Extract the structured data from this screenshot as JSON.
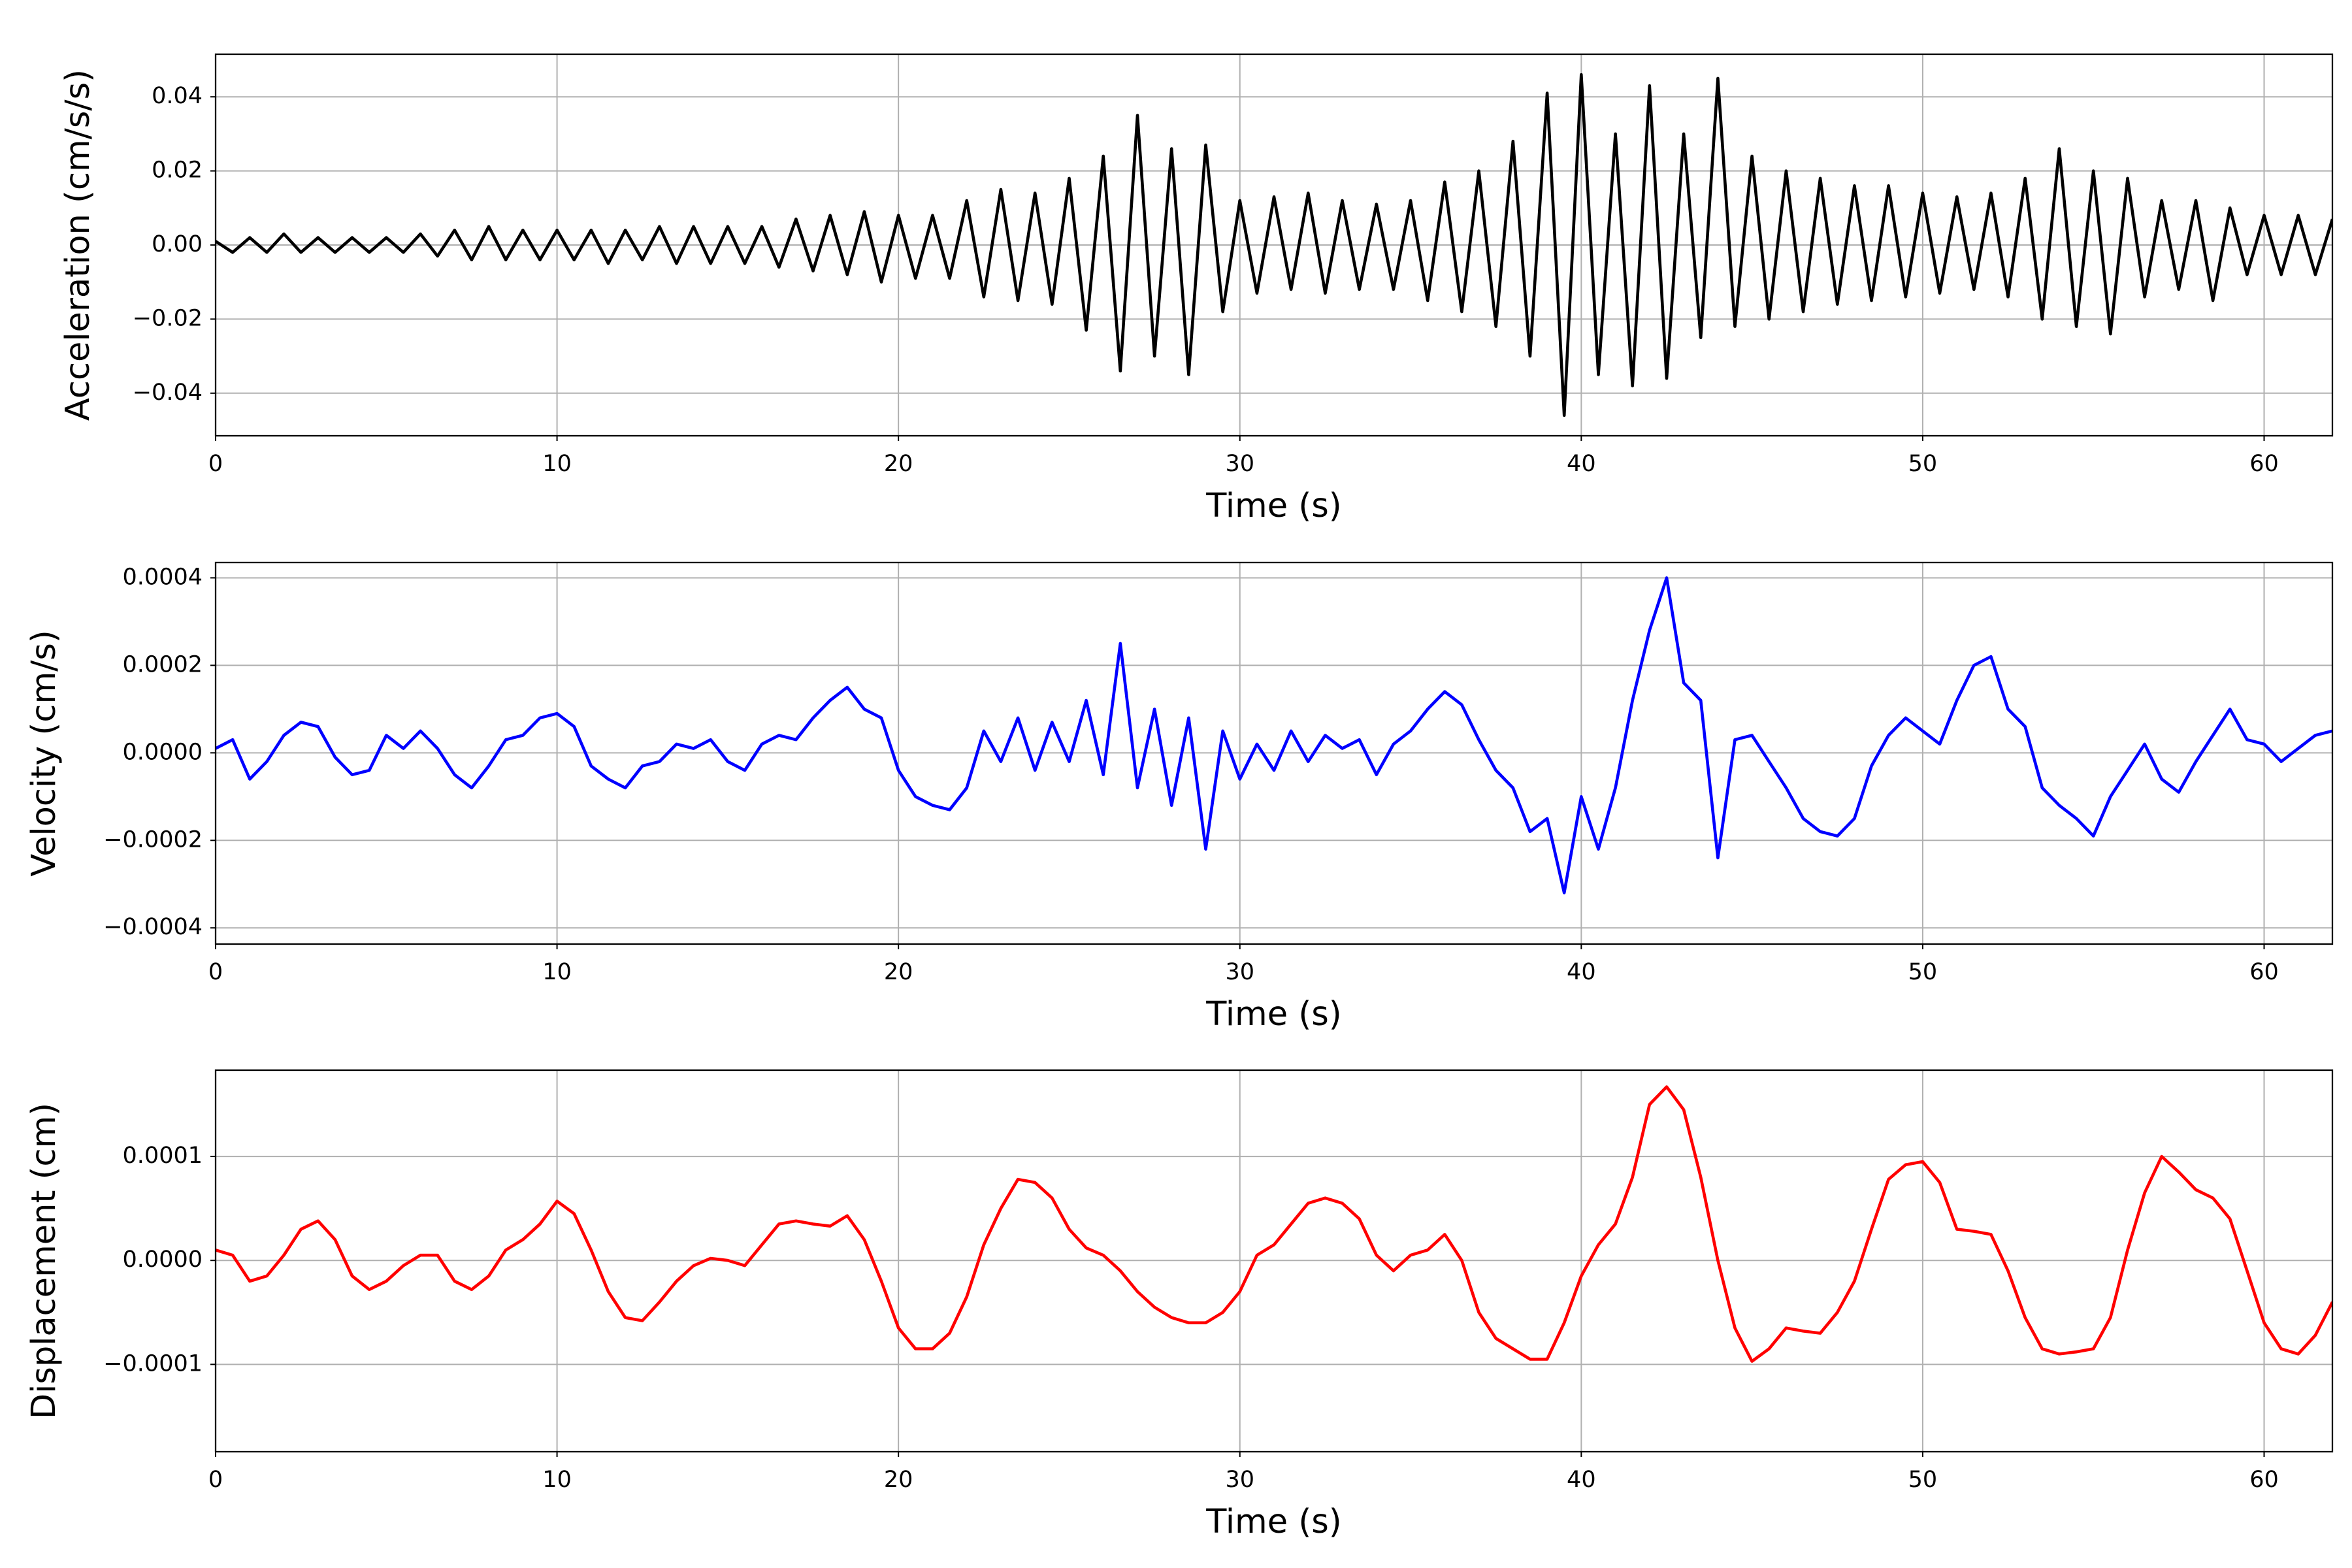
{
  "chart_data": [
    {
      "type": "line",
      "xlabel": "Time (s)",
      "ylabel": "Acceleration (cm/s/s)",
      "color": "#000000",
      "grid": true,
      "xlim": [
        0,
        62
      ],
      "xticks": [
        0,
        10,
        20,
        30,
        40,
        50,
        60
      ],
      "ylim": [
        -0.0515,
        0.0515
      ],
      "yticks": [
        {
          "value": -0.04,
          "label": "−0.04"
        },
        {
          "value": -0.02,
          "label": "−0.02"
        },
        {
          "value": 0,
          "label": "0.00"
        },
        {
          "value": 0.02,
          "label": "0.02"
        },
        {
          "value": 0.04,
          "label": "0.04"
        }
      ],
      "x": [
        0,
        0.5,
        1,
        1.5,
        2,
        2.5,
        3,
        3.5,
        4,
        4.5,
        5,
        5.5,
        6,
        6.5,
        7,
        7.5,
        8,
        8.5,
        9,
        9.5,
        10,
        10.5,
        11,
        11.5,
        12,
        12.5,
        13,
        13.5,
        14,
        14.5,
        15,
        15.5,
        16,
        16.5,
        17,
        17.5,
        18,
        18.5,
        19,
        19.5,
        20,
        20.5,
        21,
        21.5,
        22,
        22.5,
        23,
        23.5,
        24,
        24.5,
        25,
        25.5,
        26,
        26.5,
        27,
        27.5,
        28,
        28.5,
        29,
        29.5,
        30,
        30.5,
        31,
        31.5,
        32,
        32.5,
        33,
        33.5,
        34,
        34.5,
        35,
        35.5,
        36,
        36.5,
        37,
        37.5,
        38,
        38.5,
        39,
        39.5,
        40,
        40.5,
        41,
        41.5,
        42,
        42.5,
        43,
        43.5,
        44,
        44.5,
        45,
        45.5,
        46,
        46.5,
        47,
        47.5,
        48,
        48.5,
        49,
        49.5,
        50,
        50.5,
        51,
        51.5,
        52,
        52.5,
        53,
        53.5,
        54,
        54.5,
        55,
        55.5,
        56,
        56.5,
        57,
        57.5,
        58,
        58.5,
        59,
        59.5,
        60,
        60.5,
        61,
        61.5,
        62
      ],
      "values": [
        0.001,
        -0.002,
        0.002,
        -0.002,
        0.003,
        -0.002,
        0.002,
        -0.002,
        0.002,
        -0.002,
        0.002,
        -0.002,
        0.003,
        -0.003,
        0.004,
        -0.004,
        0.005,
        -0.004,
        0.004,
        -0.004,
        0.004,
        -0.004,
        0.004,
        -0.005,
        0.004,
        -0.004,
        0.005,
        -0.005,
        0.005,
        -0.005,
        0.005,
        -0.005,
        0.005,
        -0.006,
        0.007,
        -0.007,
        0.008,
        -0.008,
        0.009,
        -0.01,
        0.008,
        -0.009,
        0.008,
        -0.009,
        0.012,
        -0.014,
        0.015,
        -0.015,
        0.014,
        -0.016,
        0.018,
        -0.023,
        0.024,
        -0.034,
        0.035,
        -0.03,
        0.026,
        -0.035,
        0.027,
        -0.018,
        0.012,
        -0.013,
        0.013,
        -0.012,
        0.014,
        -0.013,
        0.012,
        -0.012,
        0.011,
        -0.012,
        0.012,
        -0.015,
        0.017,
        -0.018,
        0.02,
        -0.022,
        0.028,
        -0.03,
        0.041,
        -0.046,
        0.046,
        -0.035,
        0.03,
        -0.038,
        0.043,
        -0.036,
        0.03,
        -0.025,
        0.045,
        -0.022,
        0.024,
        -0.02,
        0.02,
        -0.018,
        0.018,
        -0.016,
        0.016,
        -0.015,
        0.016,
        -0.014,
        0.014,
        -0.013,
        0.013,
        -0.012,
        0.014,
        -0.014,
        0.018,
        -0.02,
        0.026,
        -0.022,
        0.02,
        -0.024,
        0.018,
        -0.014,
        0.012,
        -0.012,
        0.012,
        -0.015,
        0.01,
        -0.008,
        0.008,
        -0.008,
        0.008,
        -0.008,
        0.007
      ]
    },
    {
      "type": "line",
      "xlabel": "Time (s)",
      "ylabel": "Velocity (cm/s)",
      "color": "#0000ff",
      "grid": true,
      "xlim": [
        0,
        62
      ],
      "xticks": [
        0,
        10,
        20,
        30,
        40,
        50,
        60
      ],
      "ylim": [
        -0.000437,
        0.000435
      ],
      "yticks": [
        {
          "value": -0.0004,
          "label": "−0.0004"
        },
        {
          "value": -0.0002,
          "label": "−0.0002"
        },
        {
          "value": 0,
          "label": "0.0000"
        },
        {
          "value": 0.0002,
          "label": "0.0002"
        },
        {
          "value": 0.0004,
          "label": "0.0004"
        }
      ],
      "x": [
        0,
        0.5,
        1,
        1.5,
        2,
        2.5,
        3,
        3.5,
        4,
        4.5,
        5,
        5.5,
        6,
        6.5,
        7,
        7.5,
        8,
        8.5,
        9,
        9.5,
        10,
        10.5,
        11,
        11.5,
        12,
        12.5,
        13,
        13.5,
        14,
        14.5,
        15,
        15.5,
        16,
        16.5,
        17,
        17.5,
        18,
        18.5,
        19,
        19.5,
        20,
        20.5,
        21,
        21.5,
        22,
        22.5,
        23,
        23.5,
        24,
        24.5,
        25,
        25.5,
        26,
        26.5,
        27,
        27.5,
        28,
        28.5,
        29,
        29.5,
        30,
        30.5,
        31,
        31.5,
        32,
        32.5,
        33,
        33.5,
        34,
        34.5,
        35,
        35.5,
        36,
        36.5,
        37,
        37.5,
        38,
        38.5,
        39,
        39.5,
        40,
        40.5,
        41,
        41.5,
        42,
        42.5,
        43,
        43.5,
        44,
        44.5,
        45,
        45.5,
        46,
        46.5,
        47,
        47.5,
        48,
        48.5,
        49,
        49.5,
        50,
        50.5,
        51,
        51.5,
        52,
        52.5,
        53,
        53.5,
        54,
        54.5,
        55,
        55.5,
        56,
        56.5,
        57,
        57.5,
        58,
        58.5,
        59,
        59.5,
        60,
        60.5,
        61,
        61.5,
        62
      ],
      "values": [
        1e-05,
        3e-05,
        -6e-05,
        -2e-05,
        4e-05,
        7e-05,
        6e-05,
        -1e-05,
        -5e-05,
        -4e-05,
        4e-05,
        1e-05,
        5e-05,
        1e-05,
        -5e-05,
        -8e-05,
        -3e-05,
        3e-05,
        4e-05,
        8e-05,
        9e-05,
        6e-05,
        -3e-05,
        -6e-05,
        -8e-05,
        -3e-05,
        -2e-05,
        2e-05,
        1e-05,
        3e-05,
        -2e-05,
        -4e-05,
        2e-05,
        4e-05,
        3e-05,
        8e-05,
        0.00012,
        0.00015,
        0.0001,
        8e-05,
        -4e-05,
        -0.0001,
        -0.00012,
        -0.00013,
        -8e-05,
        5e-05,
        -2e-05,
        8e-05,
        -4e-05,
        7e-05,
        -2e-05,
        0.00012,
        -5e-05,
        0.00025,
        -8e-05,
        0.0001,
        -0.00012,
        8e-05,
        -0.00022,
        5e-05,
        -6e-05,
        2e-05,
        -4e-05,
        5e-05,
        -2e-05,
        4e-05,
        1e-05,
        3e-05,
        -5e-05,
        2e-05,
        5e-05,
        0.0001,
        0.00014,
        0.00011,
        3e-05,
        -4e-05,
        -8e-05,
        -0.00018,
        -0.00015,
        -0.00032,
        -0.0001,
        -0.00022,
        -8e-05,
        0.00012,
        0.00028,
        0.0004,
        0.00016,
        0.00012,
        -0.00024,
        3e-05,
        4e-05,
        -2e-05,
        -8e-05,
        -0.00015,
        -0.00018,
        -0.00019,
        -0.00015,
        -3e-05,
        4e-05,
        8e-05,
        5e-05,
        2e-05,
        0.00012,
        0.0002,
        0.00022,
        0.0001,
        6e-05,
        -8e-05,
        -0.00012,
        -0.00015,
        -0.00019,
        -0.0001,
        -4e-05,
        2e-05,
        -6e-05,
        -9e-05,
        -2e-05,
        4e-05,
        0.0001,
        3e-05,
        2e-05,
        -2e-05,
        1e-05,
        4e-05,
        5e-05
      ]
    },
    {
      "type": "line",
      "xlabel": "Time (s)",
      "ylabel": "Displacement (cm)",
      "color": "#ff0000",
      "grid": true,
      "xlim": [
        0,
        62
      ],
      "xticks": [
        0,
        10,
        20,
        30,
        40,
        50,
        60
      ],
      "ylim": [
        -0.000184,
        0.000183
      ],
      "yticks": [
        {
          "value": -0.0001,
          "label": "−0.0001"
        },
        {
          "value": 0,
          "label": "0.0000"
        },
        {
          "value": 0.0001,
          "label": "0.0001"
        }
      ],
      "x": [
        0,
        0.5,
        1,
        1.5,
        2,
        2.5,
        3,
        3.5,
        4,
        4.5,
        5,
        5.5,
        6,
        6.5,
        7,
        7.5,
        8,
        8.5,
        9,
        9.5,
        10,
        10.5,
        11,
        11.5,
        12,
        12.5,
        13,
        13.5,
        14,
        14.5,
        15,
        15.5,
        16,
        16.5,
        17,
        17.5,
        18,
        18.5,
        19,
        19.5,
        20,
        20.5,
        21,
        21.5,
        22,
        22.5,
        23,
        23.5,
        24,
        24.5,
        25,
        25.5,
        26,
        26.5,
        27,
        27.5,
        28,
        28.5,
        29,
        29.5,
        30,
        30.5,
        31,
        31.5,
        32,
        32.5,
        33,
        33.5,
        34,
        34.5,
        35,
        35.5,
        36,
        36.5,
        37,
        37.5,
        38,
        38.5,
        39,
        39.5,
        40,
        40.5,
        41,
        41.5,
        42,
        42.5,
        43,
        43.5,
        44,
        44.5,
        45,
        45.5,
        46,
        46.5,
        47,
        47.5,
        48,
        48.5,
        49,
        49.5,
        50,
        50.5,
        51,
        51.5,
        52,
        52.5,
        53,
        53.5,
        54,
        54.5,
        55,
        55.5,
        56,
        56.5,
        57,
        57.5,
        58,
        58.5,
        59,
        59.5,
        60,
        60.5,
        61,
        61.5,
        62
      ],
      "values": [
        1e-05,
        5e-06,
        -2e-05,
        -1.5e-05,
        5e-06,
        3e-05,
        3.8e-05,
        2e-05,
        -1.5e-05,
        -2.8e-05,
        -2e-05,
        -5e-06,
        5e-06,
        5e-06,
        -2e-05,
        -2.8e-05,
        -1.5e-05,
        1e-05,
        2e-05,
        3.5e-05,
        5.7e-05,
        4.5e-05,
        1e-05,
        -3e-05,
        -5.5e-05,
        -5.8e-05,
        -4e-05,
        -2e-05,
        -5e-06,
        2e-06,
        0,
        -5e-06,
        1.5e-05,
        3.5e-05,
        3.8e-05,
        3.5e-05,
        3.3e-05,
        4.3e-05,
        2e-05,
        -2e-05,
        -6.5e-05,
        -8.5e-05,
        -8.5e-05,
        -7e-05,
        -3.5e-05,
        1.5e-05,
        5e-05,
        7.8e-05,
        7.5e-05,
        6e-05,
        3e-05,
        1.2e-05,
        5e-06,
        -1e-05,
        -3e-05,
        -4.5e-05,
        -5.5e-05,
        -6e-05,
        -6e-05,
        -5e-05,
        -3e-05,
        5e-06,
        1.5e-05,
        3.5e-05,
        5.5e-05,
        6e-05,
        5.5e-05,
        4e-05,
        5e-06,
        -1e-05,
        5e-06,
        1e-05,
        2.5e-05,
        0,
        -5e-05,
        -7.5e-05,
        -8.5e-05,
        -9.5e-05,
        -9.5e-05,
        -6e-05,
        -1.5e-05,
        1.5e-05,
        3.5e-05,
        8e-05,
        0.00015,
        0.000167,
        0.000145,
        8e-05,
        0,
        -6.5e-05,
        -9.7e-05,
        -8.5e-05,
        -6.5e-05,
        -6.8e-05,
        -7e-05,
        -5e-05,
        -2e-05,
        3e-05,
        7.8e-05,
        9.2e-05,
        9.5e-05,
        7.5e-05,
        3e-05,
        2.8e-05,
        2.5e-05,
        -1e-05,
        -5.5e-05,
        -8.5e-05,
        -9e-05,
        -8.8e-05,
        -8.5e-05,
        -5.5e-05,
        1e-05,
        6.5e-05,
        0.0001,
        8.5e-05,
        6.8e-05,
        6e-05,
        4e-05,
        -1e-05,
        -6e-05,
        -8.5e-05,
        -9e-05,
        -7.2e-05,
        -4e-05
      ]
    }
  ]
}
